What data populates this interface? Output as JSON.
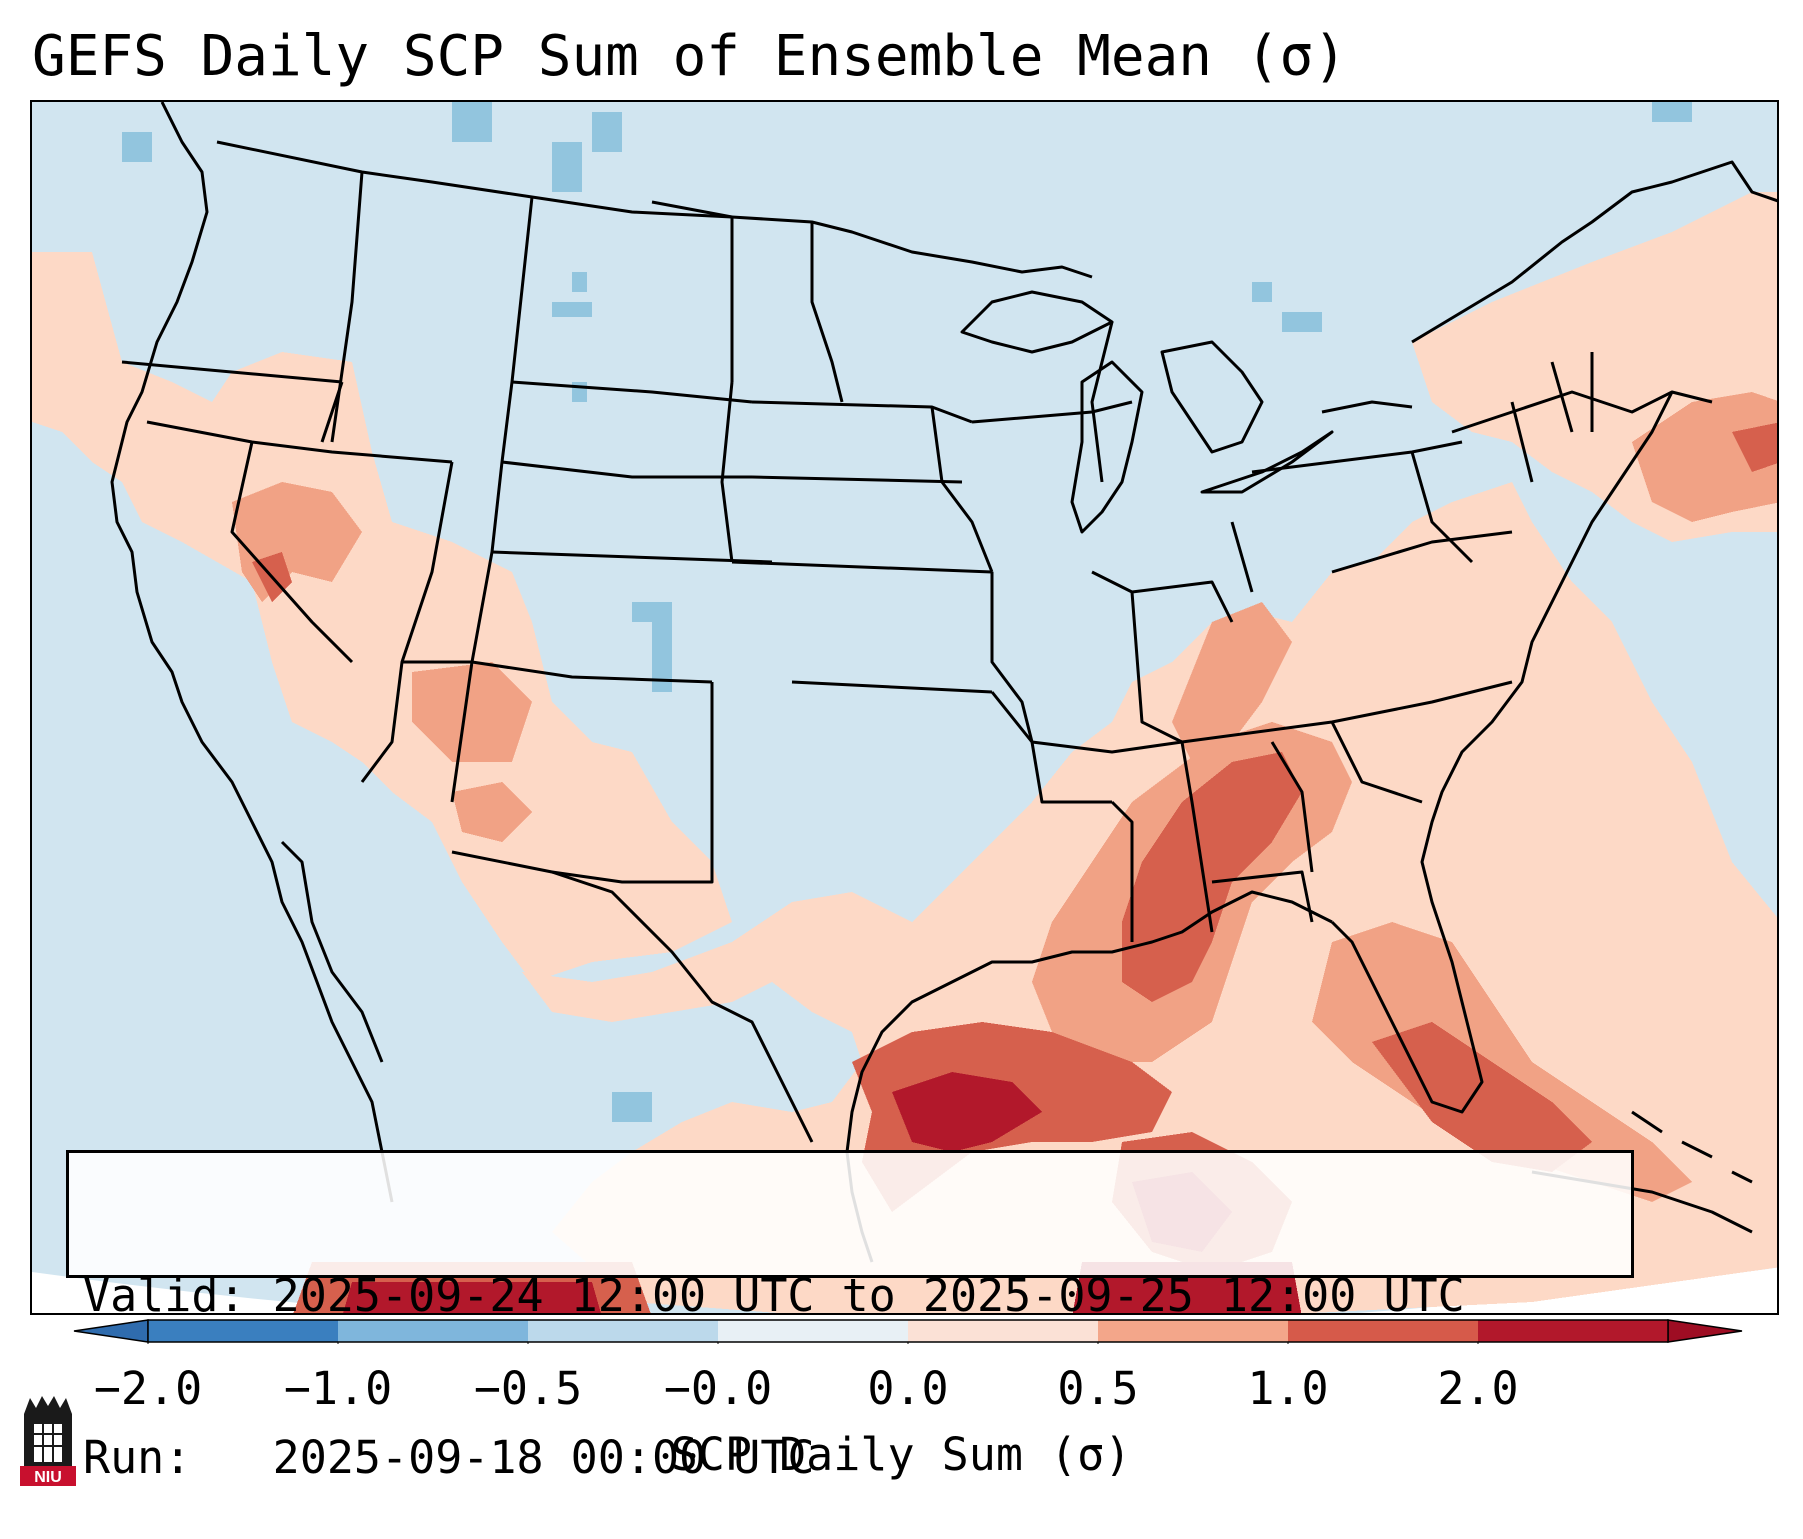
{
  "title": "GEFS Daily SCP Sum of Ensemble Mean (σ)",
  "info": {
    "valid_label": "Valid:",
    "valid_value": "2025-09-24 12:00 UTC to 2025-09-25 12:00 UTC",
    "run_label": "Run:",
    "run_value": "2025-09-18 00:00 UTC"
  },
  "colorbar": {
    "label": "SCP Daily Sum (σ)",
    "ticks": [
      "−2.0",
      "−1.0",
      "−0.5",
      "−0.0",
      "0.0",
      "0.5",
      "1.0",
      "2.0"
    ],
    "bin_colors": [
      "#3a7fbf",
      "#7fb6dc",
      "#bcd9eb",
      "#e8f0f5",
      "#fbe1d6",
      "#f3a68a",
      "#d65a4a",
      "#b2182b"
    ],
    "extend_low_color": "#2f6cae",
    "extend_high_color": "#9e0d23"
  },
  "map": {
    "projection": "Lambert Conformal, CONUS",
    "background_color": "#d1e5f0",
    "shading_colors": {
      "light_red": "#fdd9c6",
      "medium_red": "#f1a285",
      "red": "#d6604d",
      "dark_red": "#b2182b",
      "light_blue": "#92c5de"
    }
  },
  "logo": {
    "text": "NIU",
    "color": "#c8102e"
  }
}
